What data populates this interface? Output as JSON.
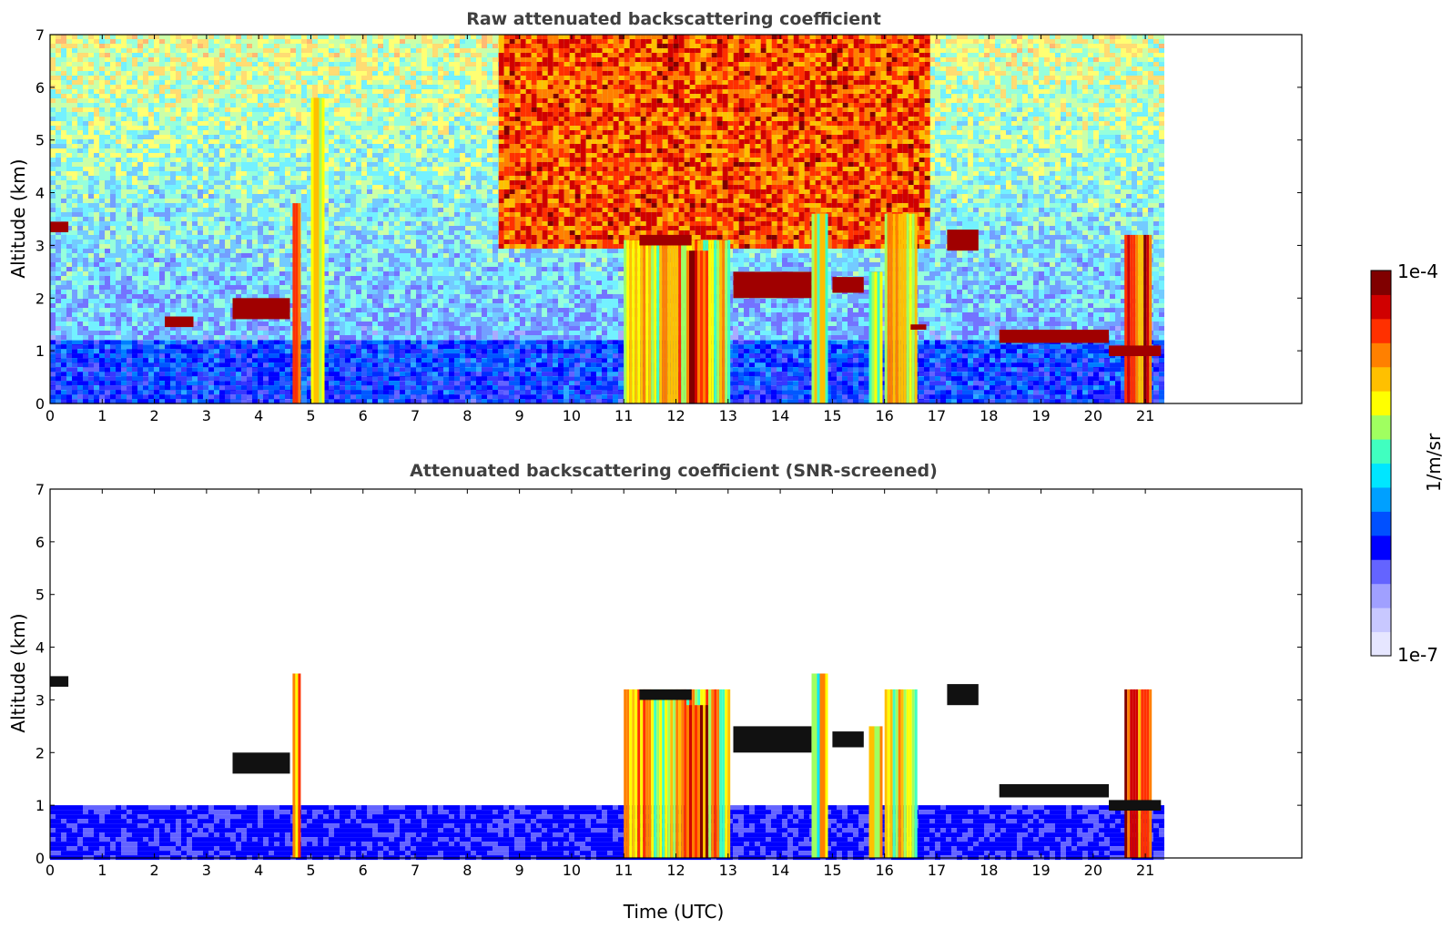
{
  "chart_data": [
    {
      "type": "heatmap",
      "title": "Raw attenuated backscattering coefficient",
      "xlabel": "",
      "ylabel": "Altitude (km)",
      "xlim": [
        0,
        24
      ],
      "ylim": [
        0,
        7
      ],
      "x_ticks": [
        0,
        1,
        2,
        3,
        4,
        5,
        6,
        7,
        8,
        9,
        10,
        11,
        12,
        13,
        14,
        15,
        16,
        17,
        18,
        19,
        20,
        21
      ],
      "y_ticks": [
        0,
        1,
        2,
        3,
        4,
        5,
        6,
        7
      ],
      "data_extent_x": [
        0,
        21.3
      ],
      "grid": false,
      "layers": [
        {
          "name": "boundary-layer",
          "x": [
            0,
            21.3
          ],
          "y": [
            0,
            1.2
          ],
          "level": 0.25
        },
        {
          "name": "background-noise",
          "x": [
            0,
            21.3
          ],
          "y": [
            0,
            7
          ],
          "level": 0.55
        },
        {
          "name": "noisy-high-region",
          "x": [
            8.6,
            16.8
          ],
          "y": [
            3.0,
            7
          ],
          "level": 0.85
        }
      ],
      "columns": [
        {
          "x": [
            4.65,
            4.8
          ],
          "top": 3.8,
          "level": 0.8
        },
        {
          "x": [
            5.0,
            5.25
          ],
          "top": 5.8,
          "level": 0.6
        },
        {
          "x": [
            11.0,
            13.0
          ],
          "top": 3.1,
          "level": 0.7
        },
        {
          "x": [
            12.2,
            12.6
          ],
          "top": 2.9,
          "level": 0.92
        },
        {
          "x": [
            14.6,
            14.9
          ],
          "top": 3.6,
          "level": 0.65
        },
        {
          "x": [
            15.7,
            15.95
          ],
          "top": 2.5,
          "level": 0.7
        },
        {
          "x": [
            16.0,
            16.6
          ],
          "top": 3.6,
          "level": 0.65
        },
        {
          "x": [
            20.6,
            21.1
          ],
          "top": 3.2,
          "level": 0.85
        }
      ],
      "cloud_layers": [
        {
          "x": [
            0.0,
            0.35
          ],
          "y": [
            3.25,
            3.45
          ]
        },
        {
          "x": [
            2.2,
            2.75
          ],
          "y": [
            1.45,
            1.65
          ]
        },
        {
          "x": [
            3.5,
            4.6
          ],
          "y": [
            1.6,
            2.0
          ]
        },
        {
          "x": [
            11.3,
            12.3
          ],
          "y": [
            3.0,
            3.2
          ]
        },
        {
          "x": [
            13.1,
            14.6
          ],
          "y": [
            2.0,
            2.5
          ]
        },
        {
          "x": [
            15.0,
            15.6
          ],
          "y": [
            2.1,
            2.4
          ]
        },
        {
          "x": [
            16.5,
            16.8
          ],
          "y": [
            1.4,
            1.5
          ]
        },
        {
          "x": [
            17.2,
            17.8
          ],
          "y": [
            2.9,
            3.3
          ]
        },
        {
          "x": [
            18.2,
            20.3
          ],
          "y": [
            1.15,
            1.4
          ]
        },
        {
          "x": [
            20.3,
            21.3
          ],
          "y": [
            0.9,
            1.1
          ]
        }
      ]
    },
    {
      "type": "heatmap",
      "title": "Attenuated backscattering coefficient (SNR-screened)",
      "xlabel": "Time (UTC)",
      "ylabel": "Altitude (km)",
      "xlim": [
        0,
        24
      ],
      "ylim": [
        0,
        7
      ],
      "x_ticks": [
        0,
        1,
        2,
        3,
        4,
        5,
        6,
        7,
        8,
        9,
        10,
        11,
        12,
        13,
        14,
        15,
        16,
        17,
        18,
        19,
        20,
        21
      ],
      "y_ticks": [
        0,
        1,
        2,
        3,
        4,
        5,
        6,
        7
      ],
      "data_extent_x": [
        0,
        21.3
      ],
      "grid": false,
      "layers": [
        {
          "name": "boundary-layer",
          "x": [
            0,
            21.3
          ],
          "y": [
            0,
            1.0
          ],
          "level": 0.25
        }
      ],
      "columns": [
        {
          "x": [
            4.65,
            4.8
          ],
          "top": 3.5,
          "level": 0.8
        },
        {
          "x": [
            11.0,
            13.0
          ],
          "top": 3.2,
          "level": 0.7
        },
        {
          "x": [
            12.2,
            12.6
          ],
          "top": 2.9,
          "level": 0.92
        },
        {
          "x": [
            14.6,
            14.9
          ],
          "top": 3.5,
          "level": 0.65
        },
        {
          "x": [
            15.7,
            15.95
          ],
          "top": 2.5,
          "level": 0.7
        },
        {
          "x": [
            16.0,
            16.6
          ],
          "top": 3.2,
          "level": 0.65
        },
        {
          "x": [
            20.6,
            21.1
          ],
          "top": 3.2,
          "level": 0.85
        }
      ],
      "cloud_layers": [
        {
          "x": [
            0.0,
            0.35
          ],
          "y": [
            3.25,
            3.45
          ]
        },
        {
          "x": [
            3.5,
            4.6
          ],
          "y": [
            1.6,
            2.0
          ]
        },
        {
          "x": [
            11.3,
            12.3
          ],
          "y": [
            3.0,
            3.2
          ]
        },
        {
          "x": [
            13.1,
            14.6
          ],
          "y": [
            2.0,
            2.5
          ]
        },
        {
          "x": [
            15.0,
            15.6
          ],
          "y": [
            2.1,
            2.4
          ]
        },
        {
          "x": [
            17.2,
            17.8
          ],
          "y": [
            2.9,
            3.3
          ]
        },
        {
          "x": [
            18.2,
            20.3
          ],
          "y": [
            1.15,
            1.4
          ]
        },
        {
          "x": [
            20.3,
            21.3
          ],
          "y": [
            0.9,
            1.1
          ]
        }
      ]
    }
  ],
  "colorbar": {
    "label": "1/m/sr",
    "tick_top": "1e-4",
    "tick_bottom": "1e-7",
    "colors": [
      "#e6e6ff",
      "#c8c8ff",
      "#a0a0ff",
      "#6464ff",
      "#0000ff",
      "#0050ff",
      "#00a0ff",
      "#00e6ff",
      "#40ffc0",
      "#a0ff60",
      "#ffff00",
      "#ffc000",
      "#ff8000",
      "#ff3000",
      "#d00000",
      "#800000"
    ]
  }
}
